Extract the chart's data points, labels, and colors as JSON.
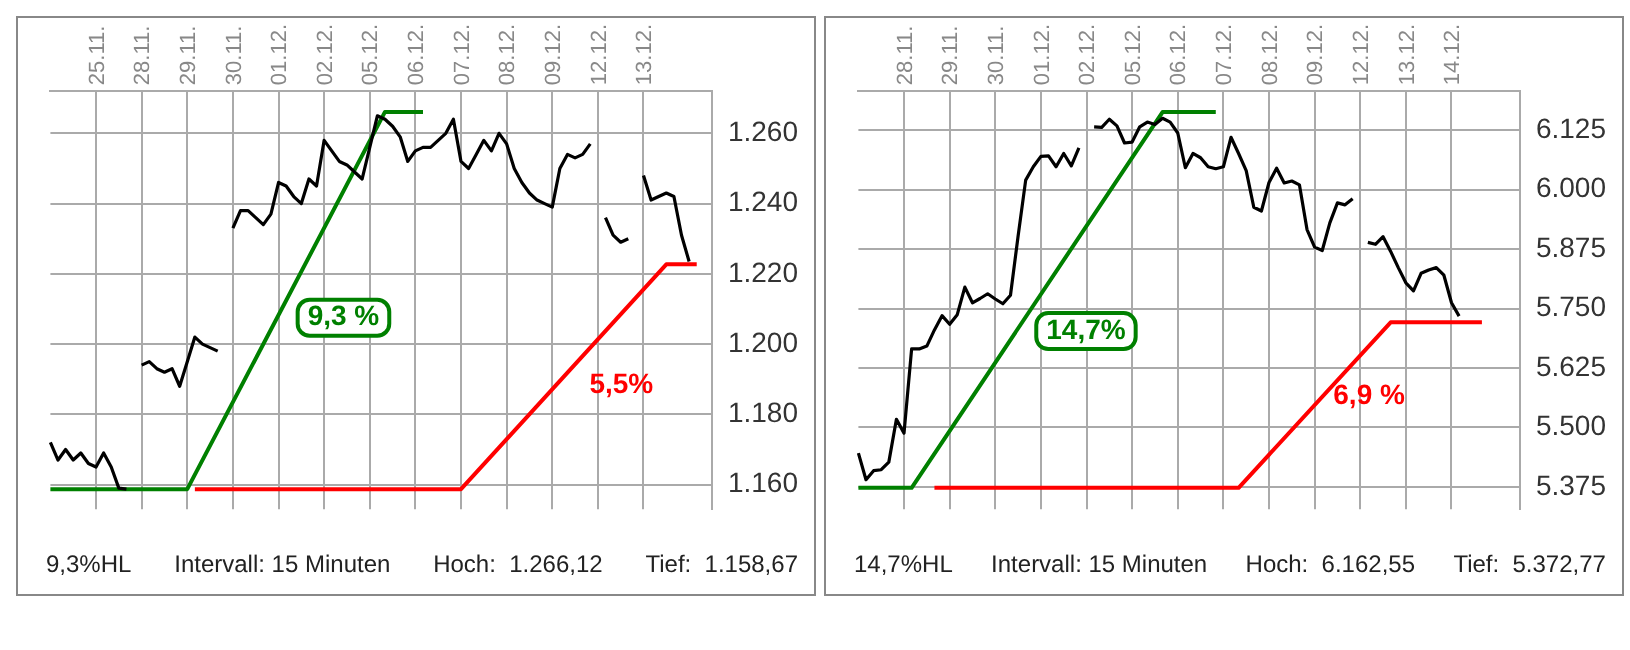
{
  "chart_data": [
    {
      "type": "line",
      "ylim": [
        1153,
        1272
      ],
      "categories": [
        null,
        null,
        null,
        null,
        null,
        null,
        "25.11.",
        null,
        null,
        null,
        null,
        null,
        "28.11.",
        null,
        null,
        null,
        null,
        null,
        "29.11.",
        null,
        null,
        null,
        null,
        null,
        "30.11.",
        null,
        null,
        null,
        null,
        null,
        "01.12.",
        null,
        null,
        null,
        null,
        null,
        "02.12.",
        null,
        null,
        null,
        null,
        null,
        "05.12.",
        null,
        null,
        null,
        null,
        null,
        "06.12.",
        null,
        null,
        null,
        null,
        null,
        "07.12.",
        null,
        null,
        null,
        null,
        null,
        "08.12.",
        null,
        null,
        null,
        null,
        null,
        "09.12.",
        null,
        null,
        null,
        null,
        null,
        "12.12.",
        null,
        null,
        null,
        null,
        null,
        "13.12.",
        null,
        null,
        null,
        null,
        null,
        null,
        null,
        null,
        null
      ],
      "yticks": [
        {
          "value": 1160,
          "label": "1.160"
        },
        {
          "value": 1180,
          "label": "1.180"
        },
        {
          "value": 1200,
          "label": "1.200"
        },
        {
          "value": 1220,
          "label": "1.220"
        },
        {
          "value": 1240,
          "label": "1.240"
        },
        {
          "value": 1260,
          "label": "1.260"
        }
      ],
      "grid": true,
      "marker": "none",
      "series": [
        {
          "color": "#000000",
          "values": [
            1172,
            1167,
            1170,
            1167,
            1169,
            1166,
            1165,
            1169,
            1165,
            1159,
            1158.7,
            null,
            1194,
            1195,
            1193,
            1192,
            1193,
            1188,
            1195,
            1202,
            1200,
            1199,
            1198,
            null,
            1233,
            1238,
            1238,
            1236,
            1234,
            1237,
            1246,
            1245,
            1242,
            1240,
            1247,
            1245,
            1258,
            1255,
            1252,
            1251,
            1249,
            1247,
            1256,
            1265,
            1264,
            1262,
            1259,
            1252,
            1255,
            1256,
            1256,
            1258,
            1260,
            1264,
            1252,
            1250,
            1254,
            1258,
            1255,
            1260,
            1257,
            1250,
            1246,
            1243,
            1241,
            1240,
            1239,
            1250,
            1254,
            1253,
            1254,
            1257,
            null,
            1236,
            1231,
            1229,
            1230,
            null,
            1248,
            1241,
            1242,
            1243,
            1242,
            1231,
            1223.5,
            null,
            null,
            null
          ]
        },
        {
          "color": "#008000",
          "values": [
            1158.7,
            null,
            null,
            null,
            null,
            null,
            null,
            null,
            null,
            null,
            null,
            null,
            null,
            null,
            null,
            null,
            null,
            null,
            1158.7,
            null,
            null,
            null,
            null,
            null,
            null,
            null,
            null,
            null,
            null,
            null,
            null,
            null,
            null,
            null,
            null,
            null,
            null,
            null,
            null,
            null,
            null,
            null,
            null,
            null,
            1266.1,
            null,
            null,
            null,
            null,
            1266.1,
            null,
            null,
            null,
            null,
            null,
            null,
            null,
            null,
            null,
            null,
            null,
            null,
            null,
            null,
            null,
            null,
            null,
            null,
            null,
            null,
            null,
            null,
            null,
            null,
            null,
            null,
            null,
            null,
            null,
            null,
            null,
            null,
            null,
            null,
            null,
            null,
            null,
            null
          ]
        },
        {
          "color": "#ff0000",
          "values": [
            null,
            null,
            null,
            null,
            null,
            null,
            null,
            null,
            null,
            null,
            null,
            null,
            null,
            null,
            null,
            null,
            null,
            null,
            null,
            1158.7,
            null,
            null,
            null,
            null,
            null,
            null,
            null,
            null,
            null,
            null,
            null,
            null,
            null,
            null,
            null,
            null,
            null,
            null,
            null,
            null,
            null,
            null,
            null,
            null,
            null,
            null,
            null,
            null,
            null,
            null,
            null,
            null,
            null,
            null,
            1158.7,
            null,
            null,
            null,
            null,
            null,
            null,
            null,
            null,
            null,
            null,
            null,
            null,
            null,
            null,
            null,
            null,
            null,
            null,
            null,
            null,
            null,
            null,
            null,
            null,
            null,
            null,
            1222.7,
            null,
            null,
            null,
            1222.7,
            null,
            null
          ]
        }
      ],
      "annotations": [
        "9,3 %",
        "5,5%",
        "9,3%HL",
        "Intervall: 15 Minuten",
        "Hoch:  1.266,12",
        "Tief:  1.158,67"
      ]
    },
    {
      "type": "line",
      "ylim": [
        5328,
        6207
      ],
      "categories": [
        null,
        null,
        null,
        null,
        null,
        null,
        "28.11.",
        null,
        null,
        null,
        null,
        null,
        "29.11.",
        null,
        null,
        null,
        null,
        null,
        "30.11.",
        null,
        null,
        null,
        null,
        null,
        "01.12.",
        null,
        null,
        null,
        null,
        null,
        "02.12.",
        null,
        null,
        null,
        null,
        null,
        "05.12.",
        null,
        null,
        null,
        null,
        null,
        "06.12.",
        null,
        null,
        null,
        null,
        null,
        "07.12.",
        null,
        null,
        null,
        null,
        null,
        "08.12.",
        null,
        null,
        null,
        null,
        null,
        "09.12.",
        null,
        null,
        null,
        null,
        null,
        "12.12.",
        null,
        null,
        null,
        null,
        null,
        "13.12.",
        null,
        null,
        null,
        null,
        null,
        "14.12.",
        null,
        null,
        null,
        null,
        null,
        null,
        null,
        null,
        null
      ],
      "yticks": [
        {
          "value": 5375,
          "label": "5.375"
        },
        {
          "value": 5500,
          "label": "5.500"
        },
        {
          "value": 5625,
          "label": "5.625"
        },
        {
          "value": 5750,
          "label": "5.750"
        },
        {
          "value": 5875,
          "label": "5.875"
        },
        {
          "value": 6000,
          "label": "6.000"
        },
        {
          "value": 6125,
          "label": "6.125"
        }
      ],
      "grid": true,
      "marker": "none",
      "series": [
        {
          "color": "#000000",
          "values": [
            5446,
            5390,
            5409,
            5411,
            5427,
            5517,
            5488,
            5665,
            5665,
            5671,
            5705,
            5735,
            5717,
            5737,
            5795,
            5762,
            5771,
            5781,
            5770,
            5760,
            5778,
            5902,
            6020,
            6048,
            6070,
            6071,
            6048,
            6076,
            6050,
            6088,
            null,
            6132,
            6131,
            6148,
            6134,
            6098,
            6100,
            6132,
            6142,
            6137,
            6150,
            6142,
            6119,
            6046,
            6076,
            6067,
            6048,
            6044,
            6048,
            6110,
            6076,
            6040,
            5963,
            5955,
            6015,
            6045,
            6014,
            6018,
            6010,
            5916,
            5879,
            5872,
            5930,
            5972,
            5968,
            5981,
            null,
            5889,
            5885,
            5901,
            5870,
            5836,
            5804,
            5787,
            5824,
            5831,
            5836,
            5820,
            5762,
            5734,
            null,
            null,
            null,
            null,
            null,
            null,
            null,
            null
          ]
        },
        {
          "color": "#008000",
          "values": [
            5373,
            null,
            null,
            null,
            null,
            null,
            null,
            5373,
            null,
            null,
            null,
            null,
            null,
            null,
            null,
            null,
            null,
            null,
            null,
            null,
            null,
            null,
            null,
            null,
            null,
            null,
            null,
            null,
            null,
            null,
            null,
            null,
            null,
            null,
            null,
            null,
            null,
            null,
            null,
            null,
            6163,
            null,
            null,
            null,
            null,
            null,
            null,
            6163,
            null,
            null,
            null,
            null,
            null,
            null,
            null,
            null,
            null,
            null,
            null,
            null,
            null,
            null,
            null,
            null,
            null,
            null,
            null,
            null,
            null,
            null,
            null,
            null,
            null,
            null,
            null,
            null,
            null,
            null,
            null,
            null,
            null,
            null,
            null,
            null,
            null,
            null,
            null,
            null
          ]
        },
        {
          "color": "#ff0000",
          "values": [
            null,
            null,
            null,
            null,
            null,
            null,
            null,
            null,
            null,
            null,
            5373,
            null,
            null,
            null,
            null,
            null,
            null,
            null,
            null,
            null,
            null,
            null,
            null,
            null,
            null,
            null,
            null,
            null,
            null,
            null,
            null,
            null,
            null,
            null,
            null,
            null,
            null,
            null,
            null,
            null,
            null,
            null,
            null,
            null,
            null,
            null,
            null,
            null,
            null,
            null,
            5373,
            null,
            null,
            null,
            null,
            null,
            null,
            null,
            null,
            null,
            null,
            null,
            null,
            null,
            null,
            null,
            null,
            null,
            null,
            null,
            5721,
            null,
            null,
            null,
            null,
            null,
            null,
            null,
            null,
            null,
            null,
            null,
            5721,
            null,
            null,
            null,
            null,
            null
          ]
        }
      ],
      "annotations": [
        "14,7%",
        "6,9 %",
        "14,7%HL",
        "Intervall: 15 Minuten",
        "Hoch:  6.162,55",
        "Tief:  5.372,77"
      ]
    }
  ]
}
